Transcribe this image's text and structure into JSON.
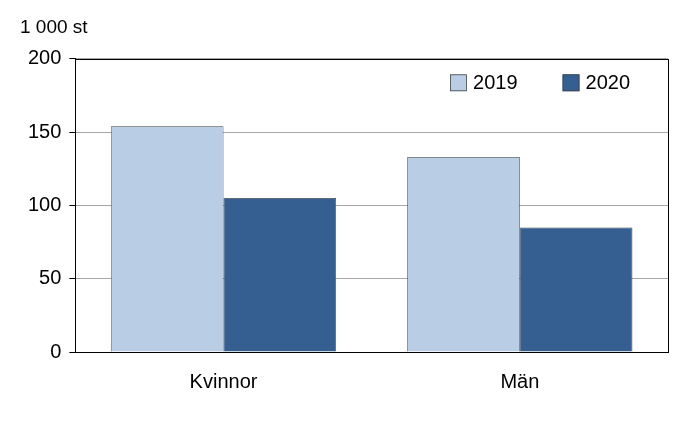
{
  "chart_data": {
    "type": "bar",
    "y_label": "1 000 st",
    "categories": [
      "Kvinnor",
      "Män"
    ],
    "series": [
      {
        "name": "2019",
        "color": "#b9cde5",
        "values": [
          154,
          133
        ]
      },
      {
        "name": "2020",
        "color": "#355f91",
        "values": [
          105,
          85
        ]
      }
    ],
    "ylim": [
      0,
      200
    ],
    "yticks": [
      0,
      50,
      100,
      150,
      200
    ],
    "grid": true,
    "legend": "upper right"
  }
}
